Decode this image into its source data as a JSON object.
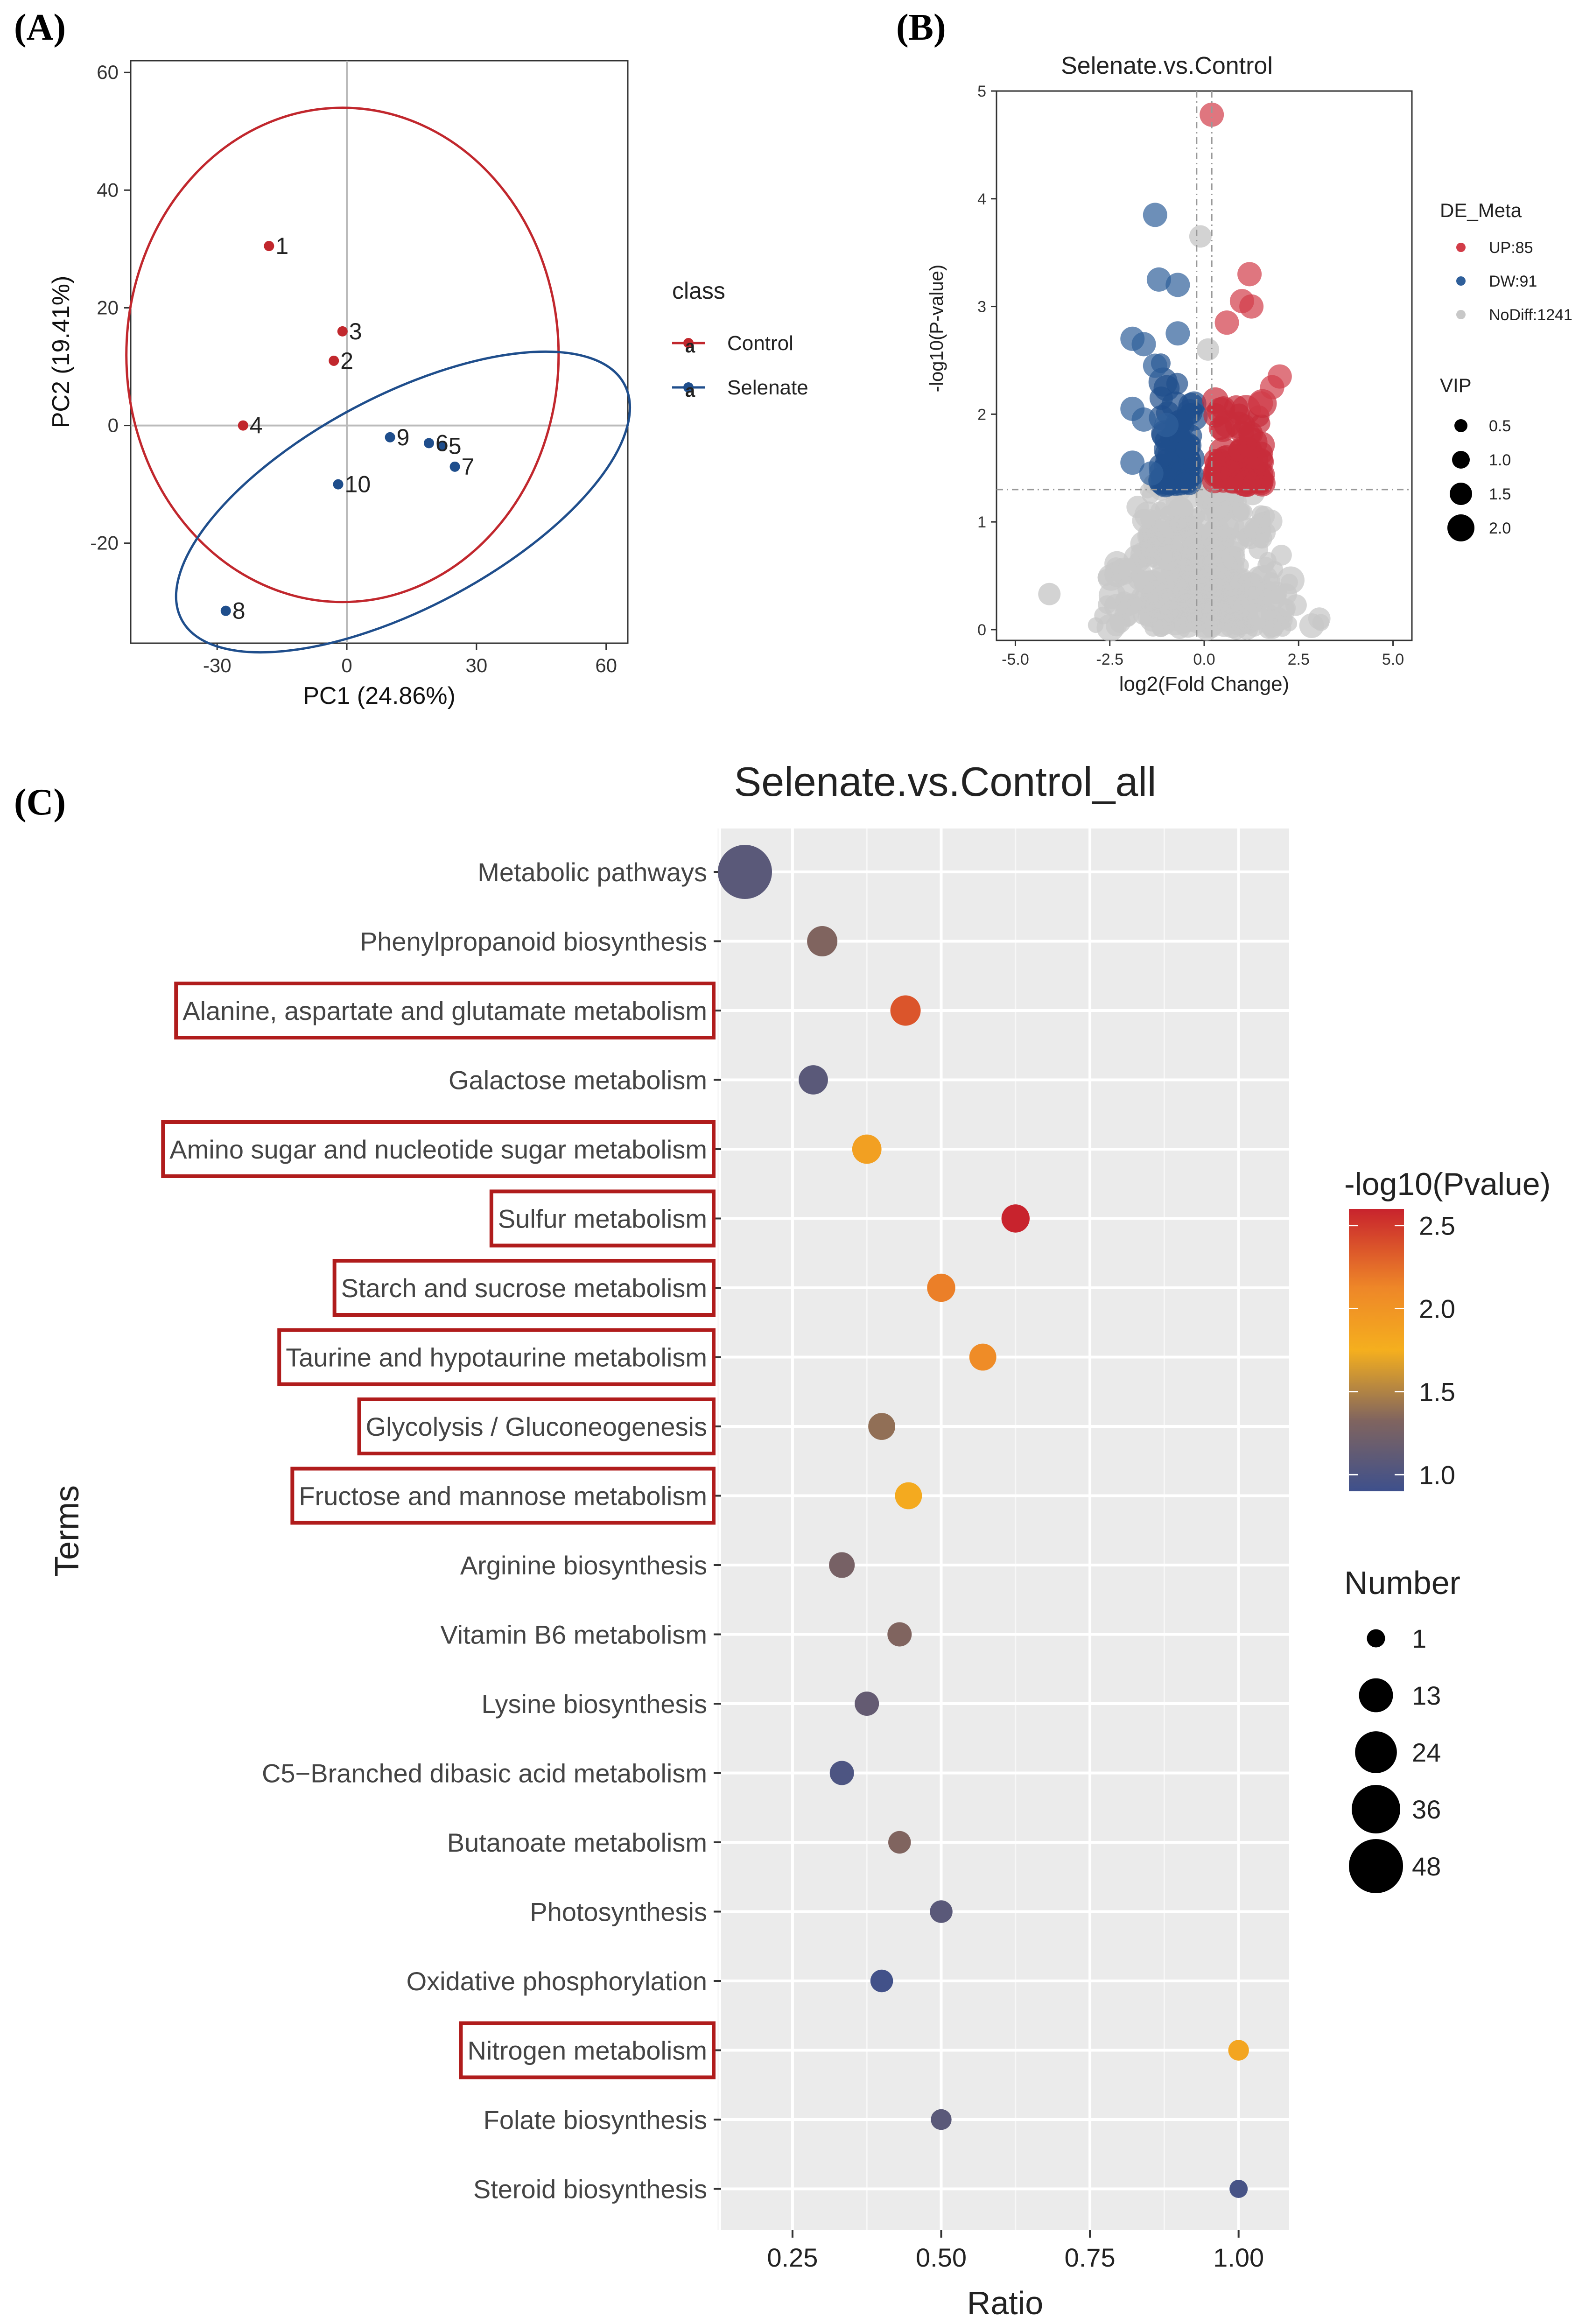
{
  "chart_data": [
    {
      "panel": "(A)",
      "type": "scatter",
      "xlabel": "PC1 (24.86%)",
      "ylabel": "PC2 (19.41%)",
      "xlim": [
        -50,
        65
      ],
      "ylim": [
        -37,
        62
      ],
      "xticks": [
        -30,
        0,
        30,
        60
      ],
      "yticks": [
        -20,
        0,
        20,
        40,
        60
      ],
      "legend_title": "class",
      "legend_position": "right",
      "series": [
        {
          "name": "Control",
          "color": "#c1272d",
          "points": [
            {
              "label": "1",
              "x": -18,
              "y": 30.5
            },
            {
              "label": "2",
              "x": -3,
              "y": 11
            },
            {
              "label": "3",
              "x": -1,
              "y": 16
            },
            {
              "label": "4",
              "x": -24,
              "y": 0
            }
          ],
          "ellipse": {
            "cx": -1,
            "cy": 12,
            "rx": 50,
            "ry": 42,
            "angle": 0
          }
        },
        {
          "name": "Selenate",
          "color": "#1f4e8c",
          "points": [
            {
              "label": "5",
              "x": 22,
              "y": -3.5
            },
            {
              "label": "6",
              "x": 19,
              "y": -3
            },
            {
              "label": "7",
              "x": 25,
              "y": -7
            },
            {
              "label": "8",
              "x": -28,
              "y": -31.5
            },
            {
              "label": "9",
              "x": 10,
              "y": -2
            },
            {
              "label": "10",
              "x": -2,
              "y": -10
            }
          ],
          "ellipse": {
            "cx": 13,
            "cy": -13,
            "rx": 58,
            "ry": 18,
            "angle": -28
          }
        }
      ]
    },
    {
      "panel": "(B)",
      "type": "scatter",
      "title": "Selenate.vs.Control",
      "xlabel": "log2(Fold Change)",
      "ylabel": "-log10(P-value)",
      "xlim": [
        -5.5,
        5.5
      ],
      "ylim": [
        -0.1,
        5
      ],
      "xticks": [
        -5.0,
        -2.5,
        0.0,
        2.5,
        5.0
      ],
      "yticks": [
        0,
        1,
        2,
        3,
        4,
        5
      ],
      "threshold_y": 1.3,
      "threshold_x": [
        -0.2,
        0.2
      ],
      "legend_title": "DE_Meta",
      "legend_entries": [
        {
          "label": "UP:85",
          "color": "#d23c48"
        },
        {
          "label": "DW:91",
          "color": "#2f5f9a"
        },
        {
          "label": "NoDiff:1241",
          "color": "#c8c8c8"
        }
      ],
      "vip_title": "VIP",
      "vip_sizes": [
        "0.5",
        "1.0",
        "1.5",
        "2.0"
      ],
      "highlight_points": {
        "up": [
          [
            0.2,
            4.78
          ],
          [
            1.2,
            3.3
          ],
          [
            1.0,
            3.05
          ],
          [
            1.25,
            3.0
          ],
          [
            0.6,
            2.85
          ],
          [
            2.0,
            2.35
          ],
          [
            1.8,
            2.25
          ],
          [
            1.5,
            2.1
          ]
        ],
        "down": [
          [
            -1.3,
            3.85
          ],
          [
            -1.2,
            3.25
          ],
          [
            -0.7,
            3.2
          ],
          [
            -1.9,
            2.7
          ],
          [
            -1.6,
            2.65
          ],
          [
            -0.7,
            2.75
          ],
          [
            -1.3,
            2.45
          ],
          [
            -1.9,
            2.05
          ],
          [
            -1.6,
            1.95
          ],
          [
            -1.0,
            1.9
          ],
          [
            -1.9,
            1.55
          ],
          [
            -1.4,
            1.45
          ]
        ],
        "nodiff": [
          [
            -0.1,
            3.65
          ],
          [
            -4.1,
            0.33
          ],
          [
            0.1,
            2.6
          ]
        ]
      }
    },
    {
      "panel": "(C)",
      "type": "scatter",
      "title": "Selenate.vs.Control_all",
      "xlabel": "Ratio",
      "ylabel": "Terms",
      "xlim": [
        0.13,
        1.085
      ],
      "xticks": [
        "0.25",
        "0.50",
        "0.75",
        "1.00"
      ],
      "color_legend_title": "-log10(Pvalue)",
      "color_ticks": [
        "2.5",
        "2.0",
        "1.5",
        "1.0"
      ],
      "size_legend_title": "Number",
      "size_ticks": [
        "1",
        "13",
        "24",
        "36",
        "48"
      ],
      "terms": [
        {
          "term": "Metabolic pathways",
          "ratio": 0.17,
          "pval": 1.05,
          "number": 48,
          "boxed": false
        },
        {
          "term": "Phenylpropanoid biosynthesis",
          "ratio": 0.3,
          "pval": 1.25,
          "number": 9,
          "boxed": false
        },
        {
          "term": "Alanine, aspartate and glutamate metabolism",
          "ratio": 0.44,
          "pval": 2.3,
          "number": 9,
          "boxed": true
        },
        {
          "term": "Galactose metabolism",
          "ratio": 0.285,
          "pval": 1.05,
          "number": 8,
          "boxed": false
        },
        {
          "term": "Amino sugar and nucleotide sugar metabolism",
          "ratio": 0.375,
          "pval": 1.75,
          "number": 8,
          "boxed": true
        },
        {
          "term": "Sulfur metabolism",
          "ratio": 0.625,
          "pval": 2.6,
          "number": 7,
          "boxed": true
        },
        {
          "term": "Starch and sucrose metabolism",
          "ratio": 0.5,
          "pval": 2.05,
          "number": 7,
          "boxed": true
        },
        {
          "term": "Taurine and hypotaurine metabolism",
          "ratio": 0.57,
          "pval": 1.95,
          "number": 6,
          "boxed": true
        },
        {
          "term": "Glycolysis / Gluconeogenesis",
          "ratio": 0.4,
          "pval": 1.3,
          "number": 6,
          "boxed": true
        },
        {
          "term": "Fructose and mannose metabolism",
          "ratio": 0.445,
          "pval": 1.65,
          "number": 6,
          "boxed": true
        },
        {
          "term": "Arginine biosynthesis",
          "ratio": 0.333,
          "pval": 1.2,
          "number": 5,
          "boxed": false
        },
        {
          "term": "Vitamin B6 metabolism",
          "ratio": 0.43,
          "pval": 1.25,
          "number": 4,
          "boxed": false
        },
        {
          "term": "Lysine biosynthesis",
          "ratio": 0.375,
          "pval": 1.1,
          "number": 4,
          "boxed": false
        },
        {
          "term": "C5−Branched dibasic acid metabolism",
          "ratio": 0.333,
          "pval": 0.98,
          "number": 4,
          "boxed": false
        },
        {
          "term": "Butanoate metabolism",
          "ratio": 0.43,
          "pval": 1.25,
          "number": 3,
          "boxed": false
        },
        {
          "term": "Photosynthesis",
          "ratio": 0.5,
          "pval": 1.05,
          "number": 3,
          "boxed": false
        },
        {
          "term": "Oxidative phosphorylation",
          "ratio": 0.4,
          "pval": 0.92,
          "number": 3,
          "boxed": false
        },
        {
          "term": "Nitrogen metabolism",
          "ratio": 1.0,
          "pval": 1.7,
          "number": 2,
          "boxed": true
        },
        {
          "term": "Folate biosynthesis",
          "ratio": 0.5,
          "pval": 1.05,
          "number": 2,
          "boxed": false
        },
        {
          "term": "Steroid biosynthesis",
          "ratio": 1.0,
          "pval": 0.95,
          "number": 1,
          "boxed": false
        }
      ]
    }
  ]
}
